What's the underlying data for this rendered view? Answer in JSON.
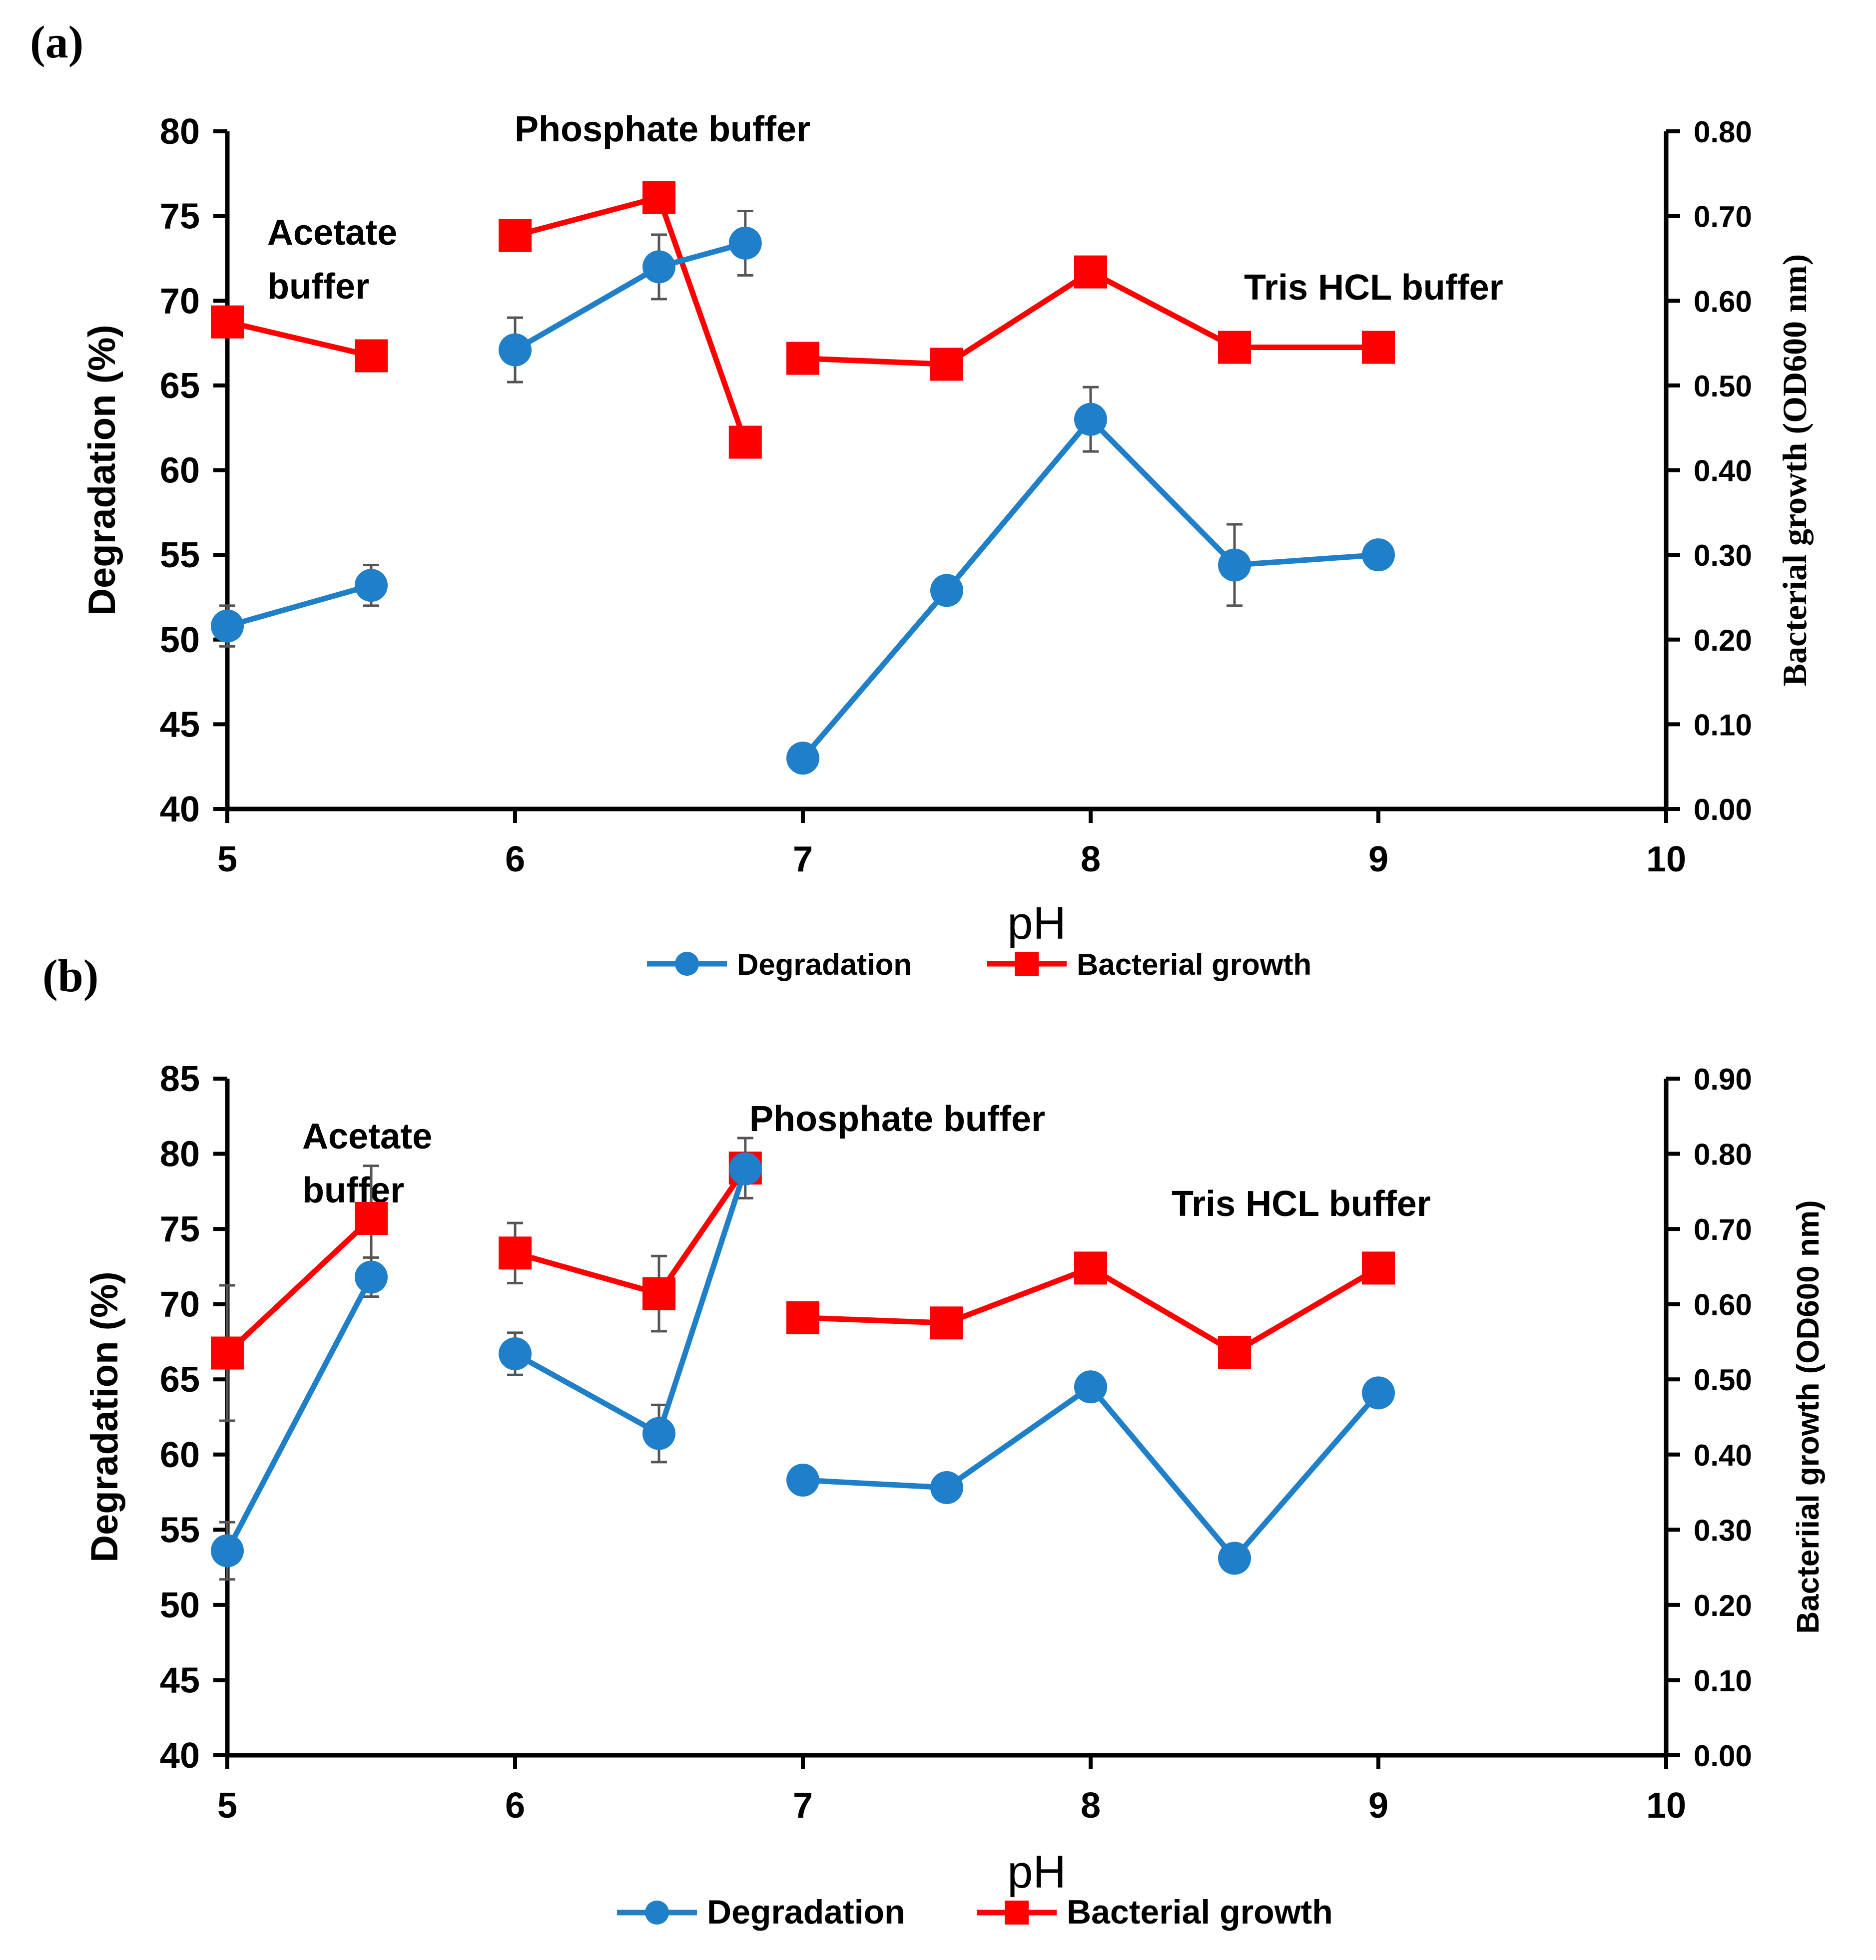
{
  "panels": [
    {
      "label": "(a)",
      "chart_data": {
        "type": "line",
        "x_label": "pH",
        "y_left_label": "Degradation (%)",
        "y_right_label": "Bacterial growth (OD600 nm)",
        "x_range": [
          5,
          10
        ],
        "x_ticks": [
          "5",
          "6",
          "7",
          "8",
          "9",
          "10"
        ],
        "y_left_range": [
          40,
          80
        ],
        "y_left_ticks": [
          "40",
          "45",
          "50",
          "55",
          "60",
          "65",
          "70",
          "75",
          "80"
        ],
        "y_right_range": [
          0,
          0.8
        ],
        "y_right_ticks": [
          "0.00",
          "0.10",
          "0.20",
          "0.30",
          "0.40",
          "0.50",
          "0.60",
          "0.70",
          "0.80"
        ],
        "legend_position": "bottom-center",
        "grid": false,
        "annotations": [
          {
            "lines": [
              "Acetate",
              "buffer"
            ]
          },
          {
            "lines": [
              "Phosphate buffer"
            ]
          },
          {
            "lines": [
              "Tris HCL buffer"
            ]
          }
        ],
        "series": [
          {
            "name": "Degradation",
            "axis": "left",
            "color": "#1f7fc8",
            "marker": "circle",
            "segments": [
              [
                [
                  5.0,
                  50.8,
                  1.2
                ],
                [
                  5.5,
                  53.2,
                  1.2
                ]
              ],
              [
                [
                  6.0,
                  67.1,
                  1.9
                ],
                [
                  6.5,
                  72.0,
                  1.9
                ],
                [
                  6.8,
                  73.4,
                  1.9
                ]
              ],
              [
                [
                  7.0,
                  43.0,
                  0
                ],
                [
                  7.5,
                  52.9,
                  0
                ],
                [
                  8.0,
                  63.0,
                  1.9
                ],
                [
                  8.5,
                  54.4,
                  2.4
                ],
                [
                  9.0,
                  55.0,
                  0.8
                ]
              ]
            ]
          },
          {
            "name": "Bacterial growth",
            "axis": "right",
            "color": "#ff0000",
            "marker": "square",
            "segments": [
              [
                [
                  5.0,
                  0.575,
                  0
                ],
                [
                  5.5,
                  0.535,
                  0
                ]
              ],
              [
                [
                  6.0,
                  0.677,
                  0
                ],
                [
                  6.5,
                  0.722,
                  0
                ],
                [
                  6.8,
                  0.433,
                  0
                ]
              ],
              [
                [
                  7.0,
                  0.532,
                  0
                ],
                [
                  7.5,
                  0.525,
                  0
                ],
                [
                  8.0,
                  0.634,
                  0
                ],
                [
                  8.5,
                  0.545,
                  0
                ],
                [
                  9.0,
                  0.545,
                  0
                ]
              ]
            ]
          }
        ]
      }
    },
    {
      "label": "(b)",
      "chart_data": {
        "type": "line",
        "x_label": "pH",
        "y_left_label": "Degradation (%)",
        "y_right_label": "Bacteriial growth (OD600 nm)",
        "x_range": [
          5,
          10
        ],
        "x_ticks": [
          "5",
          "6",
          "7",
          "8",
          "9",
          "10"
        ],
        "y_left_range": [
          40,
          85
        ],
        "y_left_ticks": [
          "40",
          "45",
          "50",
          "55",
          "60",
          "65",
          "70",
          "75",
          "80",
          "85"
        ],
        "y_right_range": [
          0,
          0.9
        ],
        "y_right_ticks": [
          "0.00",
          "0.10",
          "0.20",
          "0.30",
          "0.40",
          "0.50",
          "0.60",
          "0.70",
          "0.80",
          "0.90"
        ],
        "legend_position": "bottom-center",
        "grid": false,
        "annotations": [
          {
            "lines": [
              "Acetate",
              "buffer"
            ]
          },
          {
            "lines": [
              "Phosphate buffer"
            ]
          },
          {
            "lines": [
              "Tris HCL buffer"
            ]
          }
        ],
        "series": [
          {
            "name": "Degradation",
            "axis": "left",
            "color": "#1f7fc8",
            "marker": "circle",
            "segments": [
              [
                [
                  5.0,
                  53.6,
                  1.9
                ],
                [
                  5.5,
                  71.8,
                  1.3
                ]
              ],
              [
                [
                  6.0,
                  66.7,
                  1.4
                ],
                [
                  6.5,
                  61.4,
                  1.9
                ],
                [
                  6.8,
                  79.0,
                  0
                ]
              ],
              [
                [
                  7.0,
                  58.3,
                  0
                ],
                [
                  7.5,
                  57.8,
                  0
                ],
                [
                  8.0,
                  64.5,
                  0
                ],
                [
                  8.5,
                  53.1,
                  0
                ],
                [
                  9.0,
                  64.1,
                  0
                ]
              ]
            ]
          },
          {
            "name": "Bacterial growth",
            "axis": "right",
            "color": "#ff0000",
            "marker": "square",
            "segments": [
              [
                [
                  5.0,
                  0.535,
                  0.09
                ],
                [
                  5.5,
                  0.714,
                  0.07
                ]
              ],
              [
                [
                  6.0,
                  0.668,
                  0.04
                ],
                [
                  6.5,
                  0.614,
                  0.05
                ],
                [
                  6.8,
                  0.781,
                  0.04
                ]
              ],
              [
                [
                  7.0,
                  0.582,
                  0
                ],
                [
                  7.5,
                  0.575,
                  0
                ],
                [
                  8.0,
                  0.648,
                  0
                ],
                [
                  8.5,
                  0.536,
                  0
                ],
                [
                  9.0,
                  0.648,
                  0
                ]
              ]
            ]
          }
        ]
      }
    }
  ]
}
